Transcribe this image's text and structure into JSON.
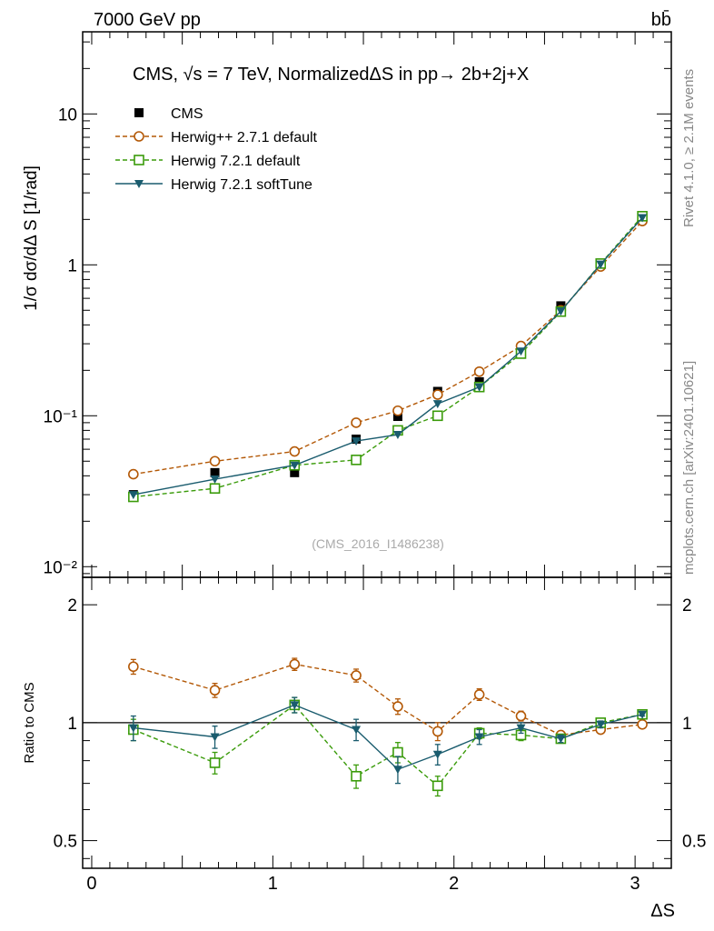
{
  "header": {
    "energy_label": "7000 GeV pp",
    "process_label": "bb̄",
    "side_label_top": "Rivet 4.1.0, ≥ 2.1M events",
    "side_label_bottom": "mcplots.cern.ch [arXiv:2401.10621]"
  },
  "chart_data": [
    {
      "type": "scatter",
      "panel": "main",
      "title": "CMS, √s = 7 TeV, NormalizedΔS in pp→  2b+2j+X",
      "xlabel": "ΔS",
      "ylabel": "1/σ dσ/dΔ S [1/rad]",
      "yscale": "log",
      "xlim": [
        -0.05,
        3.2
      ],
      "ylim": [
        0.0085,
        35
      ],
      "y_ticks": [
        {
          "value": 0.01,
          "label": "10⁻²"
        },
        {
          "value": 0.1,
          "label": "10⁻¹"
        },
        {
          "value": 1,
          "label": "1"
        },
        {
          "value": 10,
          "label": "10"
        }
      ],
      "watermark": "(CMS_2016_I1486238)",
      "legend_position": "top-left",
      "x": [
        0.23,
        0.68,
        1.12,
        1.46,
        1.69,
        1.91,
        2.14,
        2.37,
        2.59,
        2.81,
        3.04
      ],
      "series": [
        {
          "name": "CMS",
          "color": "#000000",
          "marker": "filled-square",
          "line": "none",
          "values": [
            0.03,
            0.042,
            0.042,
            0.07,
            0.099,
            0.145,
            0.168,
            0.275,
            0.535,
            1.02,
            2.0
          ]
        },
        {
          "name": "Herwig++ 2.7.1 default",
          "color": "#b35806",
          "marker": "open-circle",
          "line": "dashed",
          "values": [
            0.041,
            0.05,
            0.058,
            0.09,
            0.108,
            0.138,
            0.196,
            0.29,
            0.5,
            0.975,
            1.95
          ]
        },
        {
          "name": "Herwig 7.2.1 default",
          "color": "#3a9b0a",
          "marker": "open-square",
          "line": "dashed",
          "values": [
            0.029,
            0.033,
            0.047,
            0.051,
            0.08,
            0.1,
            0.155,
            0.258,
            0.49,
            1.02,
            2.1
          ]
        },
        {
          "name": "Herwig 7.2.1 softTune",
          "color": "#1a5c6e",
          "marker": "filled-triangle-down",
          "line": "solid",
          "values": [
            0.03,
            0.038,
            0.047,
            0.068,
            0.075,
            0.12,
            0.155,
            0.268,
            0.493,
            1.01,
            2.05
          ]
        }
      ]
    },
    {
      "type": "scatter",
      "panel": "ratio",
      "xlabel": "ΔS",
      "ylabel": "Ratio to CMS",
      "yscale": "log",
      "xlim": [
        -0.05,
        3.2
      ],
      "ylim": [
        0.425,
        2.35
      ],
      "x_ticks": [
        0,
        1,
        2,
        3
      ],
      "y_ticks": [
        {
          "value": 0.5,
          "label": "0.5"
        },
        {
          "value": 1,
          "label": "1"
        },
        {
          "value": 2,
          "label": "2"
        }
      ],
      "reference_line": 1,
      "x": [
        0.23,
        0.68,
        1.12,
        1.46,
        1.69,
        1.91,
        2.14,
        2.37,
        2.59,
        2.81,
        3.04
      ],
      "series": [
        {
          "name": "Herwig++ 2.7.1 default",
          "color": "#b35806",
          "marker": "open-circle",
          "line": "dashed",
          "values": [
            1.39,
            1.21,
            1.41,
            1.32,
            1.1,
            0.95,
            1.18,
            1.04,
            0.93,
            0.96,
            0.99
          ],
          "errors": [
            0.06,
            0.05,
            0.05,
            0.05,
            0.05,
            0.05,
            0.04,
            0.03,
            0.02,
            0.02,
            0.01
          ]
        },
        {
          "name": "Herwig 7.2.1 default",
          "color": "#3a9b0a",
          "marker": "open-square",
          "line": "dashed",
          "values": [
            0.96,
            0.79,
            1.11,
            0.73,
            0.84,
            0.69,
            0.94,
            0.93,
            0.91,
            1.0,
            1.05
          ],
          "errors": [
            0.06,
            0.05,
            0.05,
            0.05,
            0.05,
            0.04,
            0.03,
            0.03,
            0.02,
            0.02,
            0.01
          ]
        },
        {
          "name": "Herwig 7.2.1 softTune",
          "color": "#1a5c6e",
          "marker": "filled-triangle-down",
          "line": "solid",
          "values": [
            0.97,
            0.92,
            1.11,
            0.96,
            0.76,
            0.83,
            0.92,
            0.97,
            0.91,
            0.99,
            1.05
          ],
          "errors": [
            0.07,
            0.06,
            0.05,
            0.06,
            0.06,
            0.05,
            0.04,
            0.03,
            0.02,
            0.02,
            0.01
          ]
        }
      ]
    }
  ]
}
